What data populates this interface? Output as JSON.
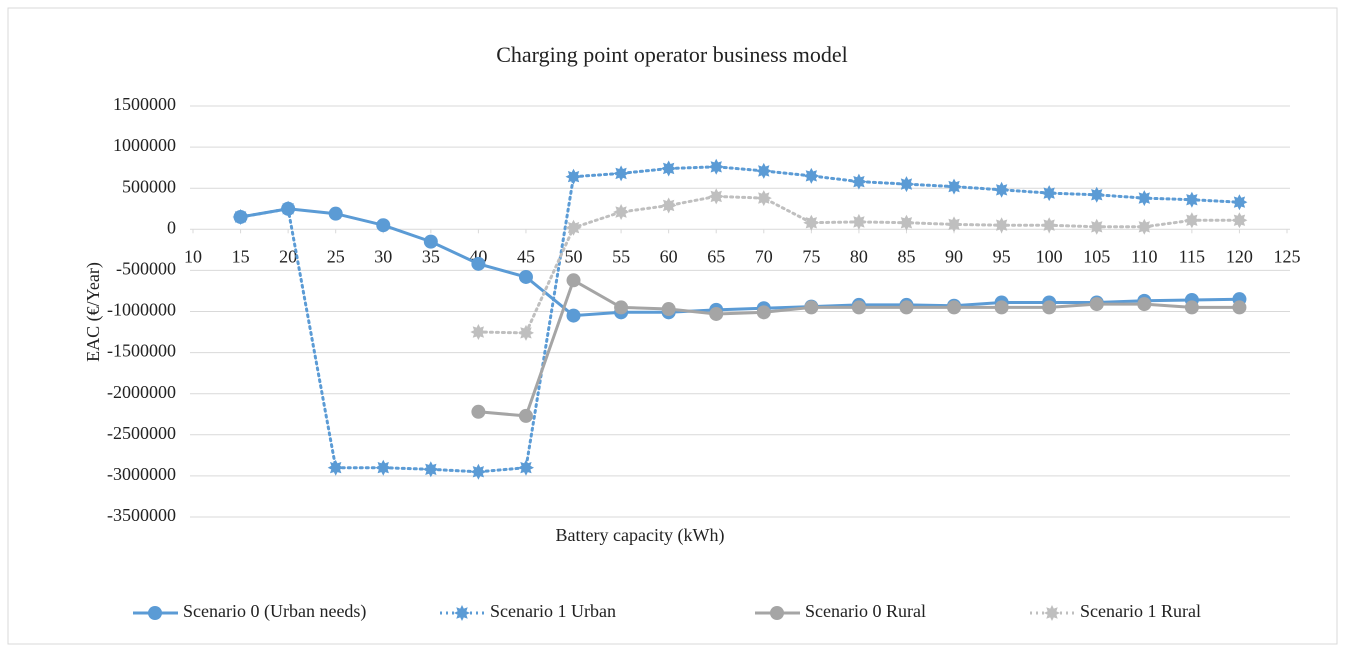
{
  "chart_data": {
    "type": "line",
    "title": "Charging point operator business model",
    "x_label": "Battery capacity (kWh)",
    "y_label": "EAC (€/Year)",
    "x": [
      15,
      20,
      25,
      30,
      35,
      40,
      45,
      50,
      55,
      60,
      65,
      70,
      75,
      80,
      85,
      90,
      95,
      100,
      105,
      110,
      115,
      120
    ],
    "xlim": [
      10,
      125
    ],
    "xticks": [
      10,
      15,
      20,
      25,
      30,
      35,
      40,
      45,
      50,
      55,
      60,
      65,
      70,
      75,
      80,
      85,
      90,
      95,
      100,
      105,
      110,
      115,
      120,
      125
    ],
    "ylim": [
      -3500000,
      1500000
    ],
    "yticks": [
      -3500000,
      -3000000,
      -2500000,
      -2000000,
      -1500000,
      -1000000,
      -500000,
      0,
      500000,
      1000000,
      1500000
    ],
    "grid": true,
    "legend": "bottom",
    "series": [
      {
        "name": "Scenario 0 (Urban needs)",
        "color": "#5b9bd5",
        "dash": "solid",
        "marker": "circle",
        "values": [
          150000,
          250000,
          190000,
          50000,
          -150000,
          -420000,
          -580000,
          -1050000,
          -1010000,
          -1010000,
          -980000,
          -960000,
          -940000,
          -920000,
          -920000,
          -930000,
          -890000,
          -890000,
          -890000,
          -870000,
          -860000,
          -850000
        ]
      },
      {
        "name": "Scenario 1 Urban",
        "color": "#5b9bd5",
        "dash": "dotted",
        "marker": "star",
        "values": [
          150000,
          250000,
          -2900000,
          -2900000,
          -2920000,
          -2950000,
          -2900000,
          640000,
          680000,
          740000,
          760000,
          710000,
          650000,
          580000,
          550000,
          520000,
          480000,
          440000,
          420000,
          380000,
          360000,
          330000
        ]
      },
      {
        "name": "Scenario 0 Rural",
        "color": "#a5a5a5",
        "dash": "solid",
        "marker": "circle",
        "values": [
          null,
          null,
          null,
          null,
          null,
          -2220000,
          -2270000,
          -620000,
          -950000,
          -970000,
          -1030000,
          -1010000,
          -950000,
          -950000,
          -950000,
          -950000,
          -950000,
          -950000,
          -910000,
          -910000,
          -950000,
          -950000
        ]
      },
      {
        "name": "Scenario 1 Rural",
        "color": "#bfbfbf",
        "dash": "dotted",
        "marker": "star",
        "values": [
          null,
          null,
          null,
          null,
          null,
          -1250000,
          -1260000,
          20000,
          210000,
          290000,
          400000,
          380000,
          80000,
          90000,
          80000,
          60000,
          50000,
          50000,
          30000,
          30000,
          110000,
          110000
        ]
      }
    ]
  }
}
